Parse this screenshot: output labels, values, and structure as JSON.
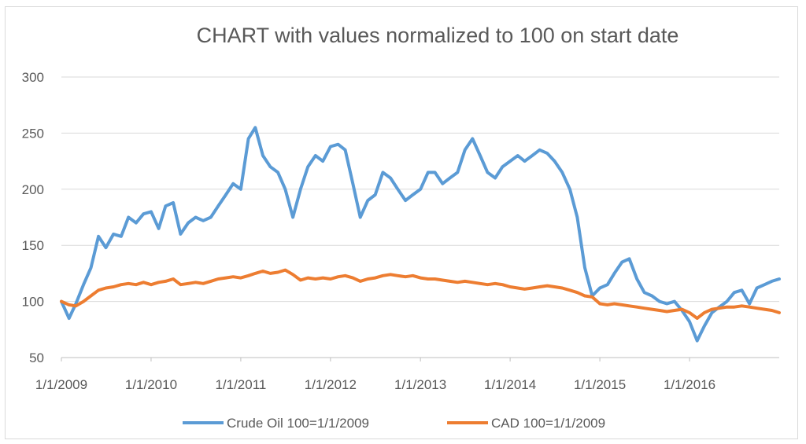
{
  "chart_data": {
    "type": "line",
    "title": "CHART with values normalized to 100 on start date",
    "xlabel": "",
    "ylabel": "",
    "ylim": [
      50,
      300
    ],
    "yticks": [
      50,
      100,
      150,
      200,
      250,
      300
    ],
    "xlim": [
      "1/1/2009",
      "12/31/2016"
    ],
    "xtick_labels": [
      "1/1/2009",
      "1/1/2010",
      "1/1/2011",
      "1/1/2012",
      "1/1/2013",
      "1/1/2014",
      "1/1/2015",
      "1/1/2016"
    ],
    "grid": true,
    "legend_position": "bottom",
    "series": [
      {
        "name": "Crude Oil 100=1/1/2009",
        "color": "#5B9BD5",
        "x": [
          "1/1/2009",
          "2/1/2009",
          "3/1/2009",
          "4/1/2009",
          "5/1/2009",
          "6/1/2009",
          "7/1/2009",
          "8/1/2009",
          "9/1/2009",
          "10/1/2009",
          "11/1/2009",
          "12/1/2009",
          "1/1/2010",
          "2/1/2010",
          "3/1/2010",
          "4/1/2010",
          "5/1/2010",
          "6/1/2010",
          "7/1/2010",
          "8/1/2010",
          "9/1/2010",
          "10/1/2010",
          "11/1/2010",
          "12/1/2010",
          "1/1/2011",
          "2/1/2011",
          "3/1/2011",
          "4/1/2011",
          "5/1/2011",
          "6/1/2011",
          "7/1/2011",
          "8/1/2011",
          "9/1/2011",
          "10/1/2011",
          "11/1/2011",
          "12/1/2011",
          "1/1/2012",
          "2/1/2012",
          "3/1/2012",
          "4/1/2012",
          "5/1/2012",
          "6/1/2012",
          "7/1/2012",
          "8/1/2012",
          "9/1/2012",
          "10/1/2012",
          "11/1/2012",
          "12/1/2012",
          "1/1/2013",
          "2/1/2013",
          "3/1/2013",
          "4/1/2013",
          "5/1/2013",
          "6/1/2013",
          "7/1/2013",
          "8/1/2013",
          "9/1/2013",
          "10/1/2013",
          "11/1/2013",
          "12/1/2013",
          "1/1/2014",
          "2/1/2014",
          "3/1/2014",
          "4/1/2014",
          "5/1/2014",
          "6/1/2014",
          "7/1/2014",
          "8/1/2014",
          "9/1/2014",
          "10/1/2014",
          "11/1/2014",
          "12/1/2014",
          "1/1/2015",
          "2/1/2015",
          "3/1/2015",
          "4/1/2015",
          "5/1/2015",
          "6/1/2015",
          "7/1/2015",
          "8/1/2015",
          "9/1/2015",
          "10/1/2015",
          "11/1/2015",
          "12/1/2015",
          "1/1/2016",
          "2/1/2016",
          "3/1/2016",
          "4/1/2016",
          "5/1/2016",
          "6/1/2016",
          "7/1/2016",
          "8/1/2016",
          "9/1/2016",
          "10/1/2016",
          "11/1/2016",
          "12/1/2016",
          "12/31/2016"
        ],
        "values": [
          100,
          85,
          98,
          115,
          130,
          158,
          148,
          160,
          158,
          175,
          170,
          178,
          180,
          165,
          185,
          188,
          160,
          170,
          175,
          172,
          175,
          185,
          195,
          205,
          200,
          245,
          255,
          230,
          220,
          215,
          200,
          175,
          200,
          220,
          230,
          225,
          238,
          240,
          235,
          205,
          175,
          190,
          195,
          215,
          210,
          200,
          190,
          195,
          200,
          215,
          215,
          205,
          210,
          215,
          235,
          245,
          230,
          215,
          210,
          220,
          225,
          230,
          225,
          230,
          235,
          232,
          225,
          215,
          200,
          175,
          130,
          105,
          112,
          115,
          125,
          135,
          138,
          120,
          108,
          105,
          100,
          98,
          100,
          92,
          82,
          65,
          78,
          90,
          95,
          100,
          108,
          110,
          98,
          112,
          115,
          118,
          120
        ]
      },
      {
        "name": "CAD 100=1/1/2009",
        "color": "#ED7D31",
        "x": [
          "1/1/2009",
          "2/1/2009",
          "3/1/2009",
          "4/1/2009",
          "5/1/2009",
          "6/1/2009",
          "7/1/2009",
          "8/1/2009",
          "9/1/2009",
          "10/1/2009",
          "11/1/2009",
          "12/1/2009",
          "1/1/2010",
          "2/1/2010",
          "3/1/2010",
          "4/1/2010",
          "5/1/2010",
          "6/1/2010",
          "7/1/2010",
          "8/1/2010",
          "9/1/2010",
          "10/1/2010",
          "11/1/2010",
          "12/1/2010",
          "1/1/2011",
          "2/1/2011",
          "3/1/2011",
          "4/1/2011",
          "5/1/2011",
          "6/1/2011",
          "7/1/2011",
          "8/1/2011",
          "9/1/2011",
          "10/1/2011",
          "11/1/2011",
          "12/1/2011",
          "1/1/2012",
          "2/1/2012",
          "3/1/2012",
          "4/1/2012",
          "5/1/2012",
          "6/1/2012",
          "7/1/2012",
          "8/1/2012",
          "9/1/2012",
          "10/1/2012",
          "11/1/2012",
          "12/1/2012",
          "1/1/2013",
          "2/1/2013",
          "3/1/2013",
          "4/1/2013",
          "5/1/2013",
          "6/1/2013",
          "7/1/2013",
          "8/1/2013",
          "9/1/2013",
          "10/1/2013",
          "11/1/2013",
          "12/1/2013",
          "1/1/2014",
          "2/1/2014",
          "3/1/2014",
          "4/1/2014",
          "5/1/2014",
          "6/1/2014",
          "7/1/2014",
          "8/1/2014",
          "9/1/2014",
          "10/1/2014",
          "11/1/2014",
          "12/1/2014",
          "1/1/2015",
          "2/1/2015",
          "3/1/2015",
          "4/1/2015",
          "5/1/2015",
          "6/1/2015",
          "7/1/2015",
          "8/1/2015",
          "9/1/2015",
          "10/1/2015",
          "11/1/2015",
          "12/1/2015",
          "1/1/2016",
          "2/1/2016",
          "3/1/2016",
          "4/1/2016",
          "5/1/2016",
          "6/1/2016",
          "7/1/2016",
          "8/1/2016",
          "9/1/2016",
          "10/1/2016",
          "11/1/2016",
          "12/1/2016",
          "12/31/2016"
        ],
        "values": [
          100,
          97,
          96,
          100,
          105,
          110,
          112,
          113,
          115,
          116,
          115,
          117,
          115,
          117,
          118,
          120,
          115,
          116,
          117,
          116,
          118,
          120,
          121,
          122,
          121,
          123,
          125,
          127,
          125,
          126,
          128,
          124,
          119,
          121,
          120,
          121,
          120,
          122,
          123,
          121,
          118,
          120,
          121,
          123,
          124,
          123,
          122,
          123,
          121,
          120,
          120,
          119,
          118,
          117,
          118,
          117,
          116,
          115,
          116,
          115,
          113,
          112,
          111,
          112,
          113,
          114,
          113,
          112,
          110,
          108,
          105,
          104,
          98,
          97,
          98,
          97,
          96,
          95,
          94,
          93,
          92,
          91,
          92,
          93,
          90,
          85,
          90,
          93,
          94,
          95,
          95,
          96,
          95,
          94,
          93,
          92,
          90
        ]
      }
    ]
  }
}
